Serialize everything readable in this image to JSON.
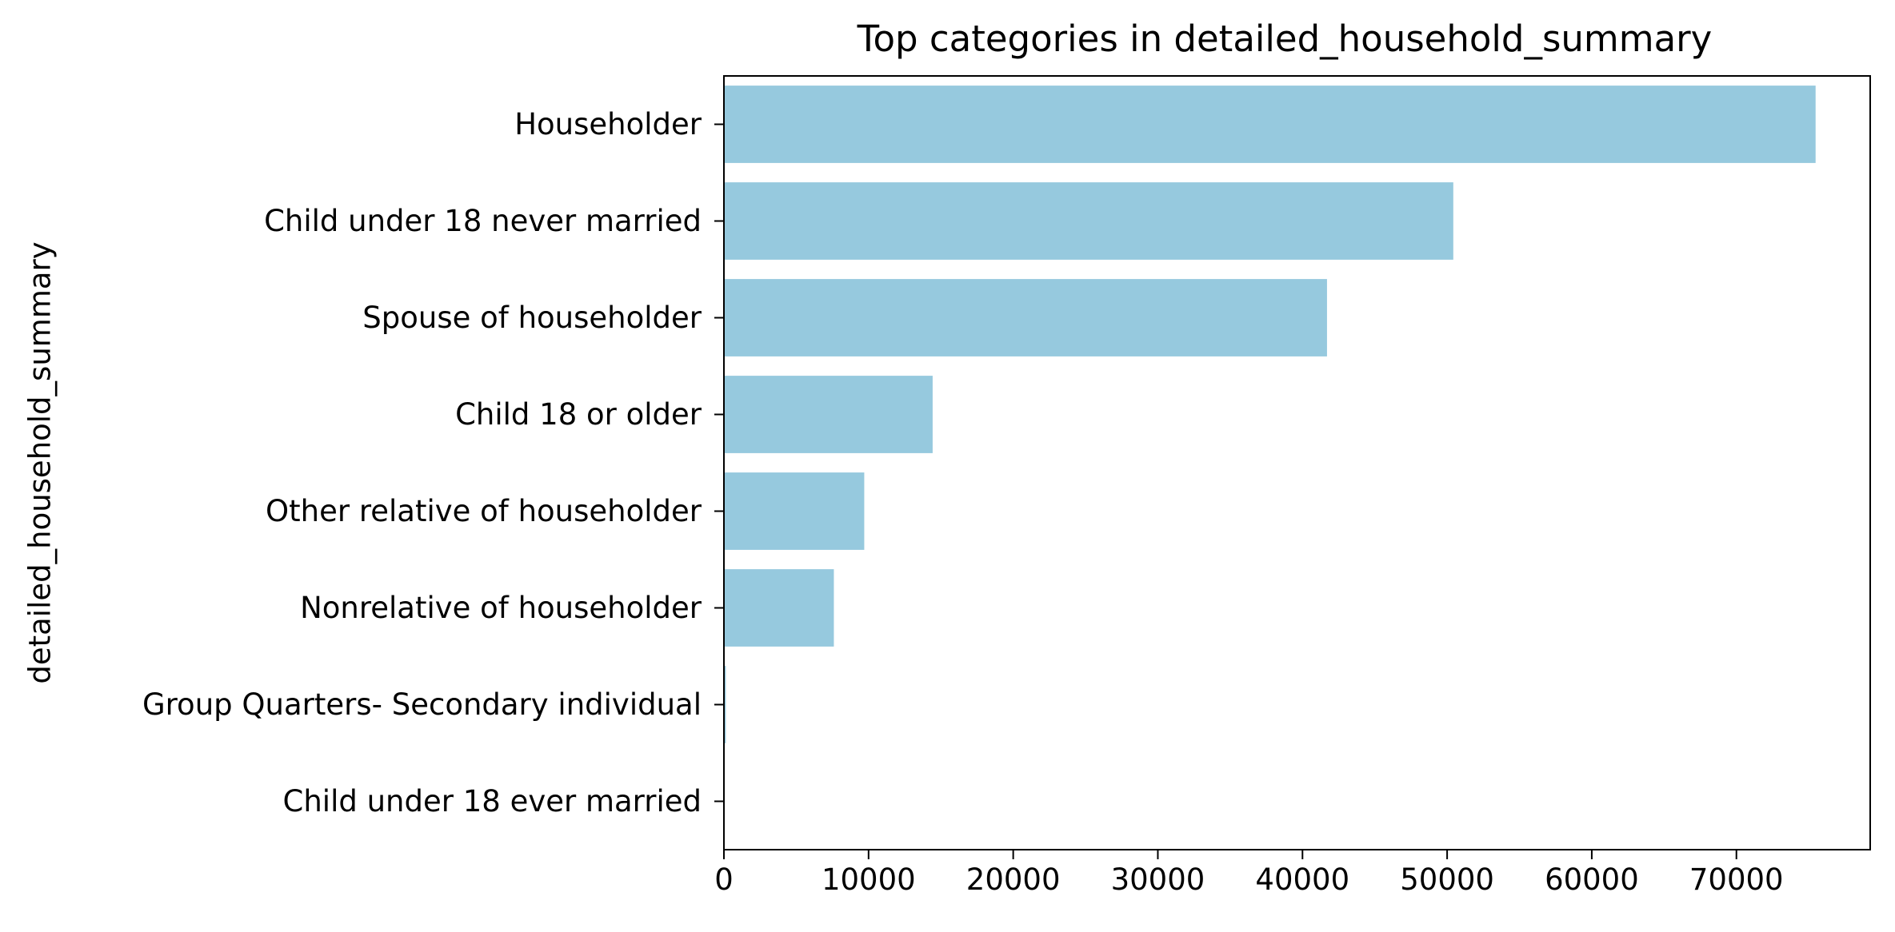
{
  "chart_data": {
    "type": "bar",
    "orientation": "horizontal",
    "title": "Top categories in detailed_household_summary",
    "xlabel": "",
    "ylabel": "detailed_household_summary",
    "categories": [
      "Householder",
      "Child under 18 never married",
      "Spouse of householder",
      "Child 18 or older",
      "Other relative of householder",
      "Nonrelative of householder",
      "Group Quarters- Secondary individual",
      "Child under 18 ever married"
    ],
    "values": [
      75475,
      50426,
      41695,
      14430,
      9702,
      7601,
      132,
      22
    ],
    "xlim": [
      0,
      79250
    ],
    "xticks": [
      0,
      10000,
      20000,
      30000,
      40000,
      50000,
      60000,
      70000
    ],
    "xtick_labels": [
      "0",
      "10000",
      "20000",
      "30000",
      "40000",
      "50000",
      "60000",
      "70000"
    ],
    "grid": false,
    "legend": "none",
    "colors": {
      "bar": "#96c9de",
      "axis": "#000000",
      "text": "#000000",
      "background": "#ffffff"
    }
  }
}
